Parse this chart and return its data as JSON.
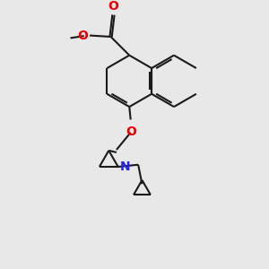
{
  "bg_color": "#e8e8e8",
  "bond_color": "#1a1a1a",
  "o_color": "#ee0000",
  "n_color": "#2222ee",
  "lw": 1.5,
  "fig_size": [
    3.0,
    3.0
  ],
  "dpi": 100,
  "xlim": [
    0,
    10
  ],
  "ylim": [
    0,
    10
  ]
}
